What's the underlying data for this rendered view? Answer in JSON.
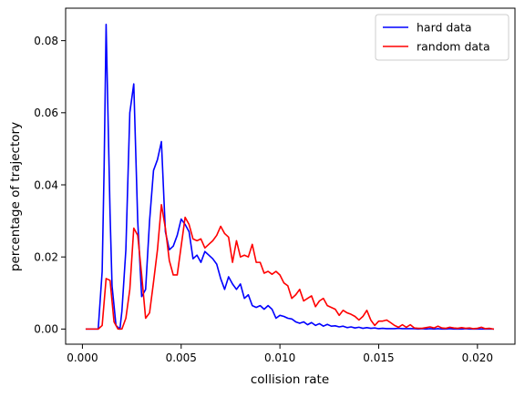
{
  "chart_data": {
    "type": "line",
    "title": "",
    "xlabel": "collision rate",
    "ylabel": "percentage of trajectory",
    "xlim": [
      -0.00085,
      0.0219
    ],
    "ylim": [
      -0.0042,
      0.089
    ],
    "xticks": [
      0.0,
      0.005,
      0.01,
      0.015,
      0.02
    ],
    "xtick_labels": [
      "0.000",
      "0.005",
      "0.010",
      "0.015",
      "0.020"
    ],
    "yticks": [
      0.0,
      0.02,
      0.04,
      0.06,
      0.08
    ],
    "ytick_labels": [
      "0.00",
      "0.02",
      "0.04",
      "0.06",
      "0.08"
    ],
    "grid": false,
    "legend_position": "top-right",
    "legend": [
      "hard data",
      "random data"
    ],
    "colors": {
      "hard data": "#0000ff",
      "random data": "#ff0000"
    },
    "series": [
      {
        "name": "hard data",
        "color": "#0000ff",
        "x": [
          0.0002,
          0.0004,
          0.0006,
          0.0008,
          0.001,
          0.0011,
          0.0012,
          0.0013,
          0.0014,
          0.0015,
          0.0017,
          0.0019,
          0.002,
          0.0022,
          0.0024,
          0.0026,
          0.0028,
          0.003,
          0.0032,
          0.0034,
          0.0036,
          0.0038,
          0.004,
          0.0042,
          0.0044,
          0.0046,
          0.0048,
          0.005,
          0.0052,
          0.0054,
          0.0056,
          0.0058,
          0.006,
          0.0062,
          0.0064,
          0.0066,
          0.0068,
          0.007,
          0.0072,
          0.0074,
          0.0076,
          0.0078,
          0.008,
          0.0082,
          0.0084,
          0.0086,
          0.0088,
          0.009,
          0.0092,
          0.0094,
          0.0096,
          0.0098,
          0.01,
          0.0102,
          0.0104,
          0.0106,
          0.0108,
          0.011,
          0.0112,
          0.0114,
          0.0116,
          0.0118,
          0.012,
          0.0122,
          0.0124,
          0.0126,
          0.0128,
          0.013,
          0.0132,
          0.0134,
          0.0136,
          0.0138,
          0.014,
          0.0142,
          0.0144,
          0.0146,
          0.0148,
          0.015,
          0.0152,
          0.0154,
          0.0156,
          0.0158,
          0.016,
          0.0162,
          0.0164,
          0.0166,
          0.0168,
          0.017,
          0.0172,
          0.0174,
          0.0176,
          0.0178,
          0.018,
          0.0182,
          0.0184,
          0.0186,
          0.0188,
          0.019,
          0.0192,
          0.0194,
          0.0196,
          0.0198,
          0.02,
          0.0202,
          0.0204,
          0.0206,
          0.0208
        ],
        "y": [
          0.0,
          0.0,
          0.0,
          0.0,
          0.016,
          0.045,
          0.0845,
          0.058,
          0.032,
          0.012,
          0.001,
          0.0,
          0.005,
          0.022,
          0.06,
          0.068,
          0.03,
          0.009,
          0.011,
          0.03,
          0.044,
          0.047,
          0.052,
          0.027,
          0.022,
          0.023,
          0.026,
          0.0305,
          0.029,
          0.027,
          0.0195,
          0.0205,
          0.0185,
          0.0215,
          0.0205,
          0.0195,
          0.018,
          0.014,
          0.011,
          0.0145,
          0.0125,
          0.011,
          0.0125,
          0.0085,
          0.0095,
          0.0065,
          0.006,
          0.0065,
          0.0055,
          0.0065,
          0.0055,
          0.003,
          0.0038,
          0.0035,
          0.003,
          0.0028,
          0.002,
          0.0016,
          0.002,
          0.0012,
          0.0018,
          0.001,
          0.0015,
          0.0008,
          0.0013,
          0.0008,
          0.0009,
          0.0006,
          0.0008,
          0.0004,
          0.0006,
          0.0003,
          0.0005,
          0.0002,
          0.0004,
          0.0002,
          0.0003,
          0.0001,
          0.0002,
          0.0001,
          0.0001,
          0.0001,
          0.0002,
          0.0001,
          0.0001,
          0.0001,
          0.0001,
          0.0,
          0.0001,
          0.0,
          0.0001,
          0.0,
          0.0001,
          0.0,
          0.0,
          0.0001,
          0.0,
          0.0,
          0.0,
          0.0001,
          0.0,
          0.0,
          0.0,
          0.0,
          0.0,
          0.0,
          0.0
        ]
      },
      {
        "name": "random data",
        "color": "#ff0000",
        "x": [
          0.0002,
          0.0004,
          0.0006,
          0.0008,
          0.001,
          0.0012,
          0.0014,
          0.0016,
          0.0018,
          0.002,
          0.0022,
          0.0024,
          0.0026,
          0.0028,
          0.003,
          0.0032,
          0.0034,
          0.0036,
          0.0038,
          0.004,
          0.0042,
          0.0044,
          0.0046,
          0.0048,
          0.005,
          0.0052,
          0.0054,
          0.0056,
          0.0058,
          0.006,
          0.0062,
          0.0064,
          0.0066,
          0.0068,
          0.007,
          0.0072,
          0.0074,
          0.0076,
          0.0078,
          0.008,
          0.0082,
          0.0084,
          0.0086,
          0.0088,
          0.009,
          0.0092,
          0.0094,
          0.0096,
          0.0098,
          0.01,
          0.0102,
          0.0104,
          0.0106,
          0.0108,
          0.011,
          0.0112,
          0.0114,
          0.0116,
          0.0118,
          0.012,
          0.0122,
          0.0124,
          0.0126,
          0.0128,
          0.013,
          0.0132,
          0.0134,
          0.0136,
          0.0138,
          0.014,
          0.0142,
          0.0144,
          0.0146,
          0.0148,
          0.015,
          0.0152,
          0.0154,
          0.0156,
          0.0158,
          0.016,
          0.0162,
          0.0164,
          0.0166,
          0.0168,
          0.017,
          0.0172,
          0.0174,
          0.0176,
          0.0178,
          0.018,
          0.0182,
          0.0184,
          0.0186,
          0.0188,
          0.019,
          0.0192,
          0.0194,
          0.0196,
          0.0198,
          0.02,
          0.0202,
          0.0204,
          0.0206,
          0.0208
        ],
        "y": [
          0.0,
          0.0,
          0.0,
          0.0,
          0.001,
          0.014,
          0.0135,
          0.002,
          0.0,
          0.0,
          0.003,
          0.011,
          0.028,
          0.026,
          0.015,
          0.003,
          0.0045,
          0.013,
          0.022,
          0.0345,
          0.028,
          0.019,
          0.015,
          0.015,
          0.023,
          0.031,
          0.029,
          0.025,
          0.0245,
          0.025,
          0.0225,
          0.0235,
          0.0245,
          0.026,
          0.0285,
          0.0265,
          0.0255,
          0.0185,
          0.0245,
          0.02,
          0.0205,
          0.02,
          0.0235,
          0.0185,
          0.0185,
          0.0155,
          0.016,
          0.0152,
          0.016,
          0.015,
          0.0128,
          0.012,
          0.0085,
          0.0095,
          0.011,
          0.0078,
          0.0085,
          0.0092,
          0.0062,
          0.0078,
          0.0085,
          0.0065,
          0.006,
          0.0055,
          0.0038,
          0.0052,
          0.0045,
          0.0041,
          0.0035,
          0.0025,
          0.0035,
          0.0052,
          0.0025,
          0.001,
          0.0022,
          0.0022,
          0.0025,
          0.0018,
          0.001,
          0.0005,
          0.0012,
          0.0005,
          0.0012,
          0.0003,
          0.0002,
          0.0002,
          0.0004,
          0.0006,
          0.0003,
          0.0008,
          0.0003,
          0.0002,
          0.0005,
          0.0003,
          0.0002,
          0.0004,
          0.0002,
          0.0003,
          0.0001,
          0.0002,
          0.0005,
          0.0001,
          0.0002,
          0.0
        ]
      }
    ]
  }
}
